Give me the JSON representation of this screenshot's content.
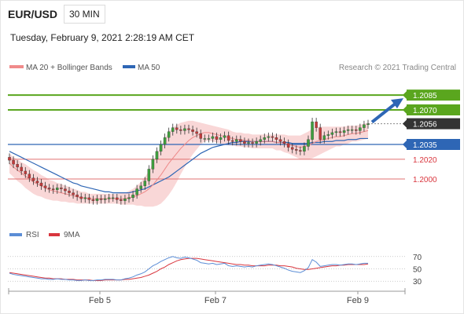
{
  "header": {
    "pair": "EUR/USD",
    "timeframe": "30 MIN",
    "datetime": "Tuesday, February 9, 2021 2:28:19 AM CET"
  },
  "legend": {
    "ma20": "MA 20 + Bollinger Bands",
    "ma50": "MA 50",
    "credit": "Research © 2021 Trading Central"
  },
  "rsi_legend": {
    "rsi": "RSI",
    "ma": "9MA"
  },
  "colors": {
    "green": "#5aa61e",
    "blue": "#2e66b5",
    "red": "#d9363e",
    "dark": "#333333",
    "band": "#f7c9c9",
    "candle_up": "#3e9e3e",
    "candle_down": "#c23a3a"
  },
  "chart_data": [
    {
      "type": "candlestick",
      "title": "EUR/USD",
      "ylim": [
        1.1965,
        1.2105
      ],
      "x_labels": [
        "Feb 5",
        "Feb 7",
        "Feb 9"
      ],
      "levels": [
        {
          "value": 1.2085,
          "label": "1.2085",
          "style": "green-box"
        },
        {
          "value": 1.207,
          "label": "1.2070",
          "style": "green-box"
        },
        {
          "value": 1.2056,
          "label": "1.2056",
          "style": "dark-box"
        },
        {
          "value": 1.2035,
          "label": "1.2035",
          "style": "blue-box"
        },
        {
          "value": 1.202,
          "label": "1.2020",
          "style": "red-text"
        },
        {
          "value": 1.2,
          "label": "1.2000",
          "style": "red-text"
        }
      ],
      "close": [
        1.2019,
        1.2015,
        1.2012,
        1.2008,
        1.2005,
        1.2001,
        1.1998,
        1.1996,
        1.1993,
        1.1991,
        1.199,
        1.1989,
        1.1991,
        1.199,
        1.1988,
        1.1986,
        1.1984,
        1.1982,
        1.198,
        1.1981,
        1.1979,
        1.1978,
        1.198,
        1.1979,
        1.198,
        1.1981,
        1.1981,
        1.1979,
        1.1978,
        1.198,
        1.1981,
        1.1984,
        1.199,
        1.1993,
        1.1998,
        1.201,
        1.202,
        1.2028,
        1.2035,
        1.2042,
        1.2048,
        1.2052,
        1.205,
        1.2049,
        1.2051,
        1.205,
        1.2048,
        1.2046,
        1.2041,
        1.2041,
        1.2041,
        1.2043,
        1.204,
        1.2042,
        1.2044,
        1.2039,
        1.2038,
        1.204,
        1.2038,
        1.2036,
        1.2037,
        1.2036,
        1.2038,
        1.204,
        1.2042,
        1.2043,
        1.2042,
        1.204,
        1.2038,
        1.2036,
        1.2032,
        1.203,
        1.2029,
        1.2028,
        1.2033,
        1.204,
        1.2058,
        1.2052,
        1.204,
        1.2044,
        1.2045,
        1.2047,
        1.2048,
        1.2047,
        1.2049,
        1.205,
        1.205,
        1.2049,
        1.2052,
        1.2055,
        1.2056
      ],
      "ma20": [
        1.2016,
        1.2012,
        1.2009,
        1.2006,
        1.2003,
        1.2,
        1.1997,
        1.1995,
        1.1993,
        1.1991,
        1.1989,
        1.1988,
        1.1987,
        1.1986,
        1.1985,
        1.1984,
        1.1983,
        1.1982,
        1.1981,
        1.1981,
        1.198,
        1.198,
        1.198,
        1.198,
        1.198,
        1.198,
        1.198,
        1.198,
        1.198,
        1.198,
        1.1981,
        1.1982,
        1.1983,
        1.1985,
        1.1987,
        1.199,
        1.1994,
        1.1999,
        1.2004,
        1.201,
        1.2016,
        1.2021,
        1.2026,
        1.2031,
        1.2035,
        1.2039,
        1.2042,
        1.2044,
        1.2046,
        1.2047,
        1.2047,
        1.2046,
        1.2045,
        1.2044,
        1.2043,
        1.2042,
        1.2041,
        1.204,
        1.204,
        1.2039,
        1.2039,
        1.2038,
        1.2038,
        1.2038,
        1.2038,
        1.2038,
        1.2038,
        1.2037,
        1.2037,
        1.2036,
        1.2035,
        1.2034,
        1.2033,
        1.2032,
        1.2033,
        1.2034,
        1.2036,
        1.2038,
        1.2039,
        1.204,
        1.2041,
        1.2042,
        1.2043,
        1.2043,
        1.2044,
        1.2045,
        1.2046,
        1.2046,
        1.2047,
        1.2048,
        1.2049
      ],
      "ma50": [
        1.2028,
        1.2026,
        1.2024,
        1.2022,
        1.202,
        1.2018,
        1.2016,
        1.2014,
        1.2012,
        1.201,
        1.2008,
        1.2006,
        1.2004,
        1.2002,
        1.2,
        1.1998,
        1.1996,
        1.1995,
        1.1993,
        1.1992,
        1.1991,
        1.199,
        1.1989,
        1.1988,
        1.1987,
        1.1987,
        1.1986,
        1.1986,
        1.1986,
        1.1986,
        1.1986,
        1.1987,
        1.1988,
        1.1989,
        1.199,
        1.1992,
        1.1994,
        1.1996,
        1.1998,
        1.2,
        1.2002,
        1.2005,
        1.2008,
        1.2011,
        1.2014,
        1.2017,
        1.202,
        1.2023,
        1.2026,
        1.2028,
        1.203,
        1.2032,
        1.2033,
        1.2034,
        1.2035,
        1.2036,
        1.2037,
        1.2037,
        1.2038,
        1.2038,
        1.2038,
        1.2038,
        1.2038,
        1.2038,
        1.2038,
        1.2038,
        1.2038,
        1.2037,
        1.2037,
        1.2037,
        1.2037,
        1.2036,
        1.2036,
        1.2036,
        1.2036,
        1.2036,
        1.2037,
        1.2037,
        1.2037,
        1.2038,
        1.2038,
        1.2038,
        1.2039,
        1.2039,
        1.2039,
        1.204,
        1.204,
        1.204,
        1.2041,
        1.2041,
        1.2041
      ],
      "band_width": [
        0.001,
        0.001,
        0.0011,
        0.0011,
        0.0012,
        0.0012,
        0.0012,
        0.0012,
        0.0011,
        0.0011,
        0.001,
        0.001,
        0.0009,
        0.0009,
        0.0008,
        0.0008,
        0.0007,
        0.0007,
        0.0006,
        0.0006,
        0.0005,
        0.0005,
        0.0005,
        0.0005,
        0.0005,
        0.0005,
        0.0005,
        0.0005,
        0.0006,
        0.0006,
        0.0007,
        0.0008,
        0.001,
        0.0012,
        0.0015,
        0.0018,
        0.0022,
        0.0026,
        0.0029,
        0.0031,
        0.0032,
        0.0031,
        0.0029,
        0.0026,
        0.0023,
        0.002,
        0.0017,
        0.0014,
        0.0011,
        0.0009,
        0.0008,
        0.0008,
        0.0008,
        0.0008,
        0.0008,
        0.0008,
        0.0007,
        0.0007,
        0.0007,
        0.0007,
        0.0007,
        0.0007,
        0.0007,
        0.0007,
        0.0007,
        0.0007,
        0.0007,
        0.0008,
        0.0008,
        0.0009,
        0.0009,
        0.001,
        0.0011,
        0.0012,
        0.0013,
        0.0014,
        0.0015,
        0.0015,
        0.0014,
        0.0013,
        0.0012,
        0.0011,
        0.001,
        0.001,
        0.0009,
        0.0009,
        0.0008,
        0.0008,
        0.0008,
        0.0008,
        0.0008
      ],
      "projection": {
        "from": 1.2056,
        "to": 1.2085
      }
    },
    {
      "type": "line",
      "title": "RSI",
      "ylim": [
        15,
        85
      ],
      "y_ticks": [
        70,
        50,
        30
      ],
      "series": [
        {
          "name": "RSI",
          "values": [
            43,
            41,
            40,
            39,
            38,
            37,
            36,
            35,
            34,
            34,
            33,
            33,
            34,
            33,
            33,
            32,
            32,
            31,
            31,
            32,
            31,
            31,
            32,
            32,
            33,
            33,
            33,
            32,
            32,
            34,
            35,
            37,
            40,
            42,
            45,
            50,
            55,
            58,
            62,
            65,
            68,
            70,
            68,
            67,
            69,
            68,
            66,
            64,
            60,
            59,
            58,
            59,
            57,
            58,
            59,
            55,
            54,
            55,
            54,
            53,
            54,
            53,
            55,
            56,
            57,
            58,
            57,
            55,
            53,
            51,
            48,
            46,
            45,
            44,
            47,
            52,
            65,
            61,
            54,
            55,
            56,
            57,
            57,
            56,
            57,
            58,
            58,
            57,
            58,
            59,
            59
          ]
        },
        {
          "name": "9MA",
          "values": [
            44,
            43,
            42,
            41,
            40,
            39,
            38,
            37,
            36,
            35,
            35,
            34,
            34,
            34,
            33,
            33,
            33,
            32,
            32,
            32,
            32,
            31,
            31,
            31,
            32,
            32,
            32,
            32,
            32,
            33,
            33,
            34,
            35,
            36,
            38,
            40,
            43,
            46,
            50,
            53,
            57,
            60,
            63,
            65,
            66,
            67,
            67,
            67,
            66,
            65,
            64,
            63,
            62,
            61,
            60,
            59,
            58,
            57,
            57,
            56,
            56,
            55,
            55,
            55,
            55,
            56,
            56,
            56,
            55,
            55,
            54,
            53,
            51,
            50,
            49,
            49,
            50,
            51,
            52,
            53,
            54,
            55,
            55,
            56,
            56,
            57,
            57,
            57,
            57,
            57,
            58
          ]
        }
      ]
    }
  ]
}
